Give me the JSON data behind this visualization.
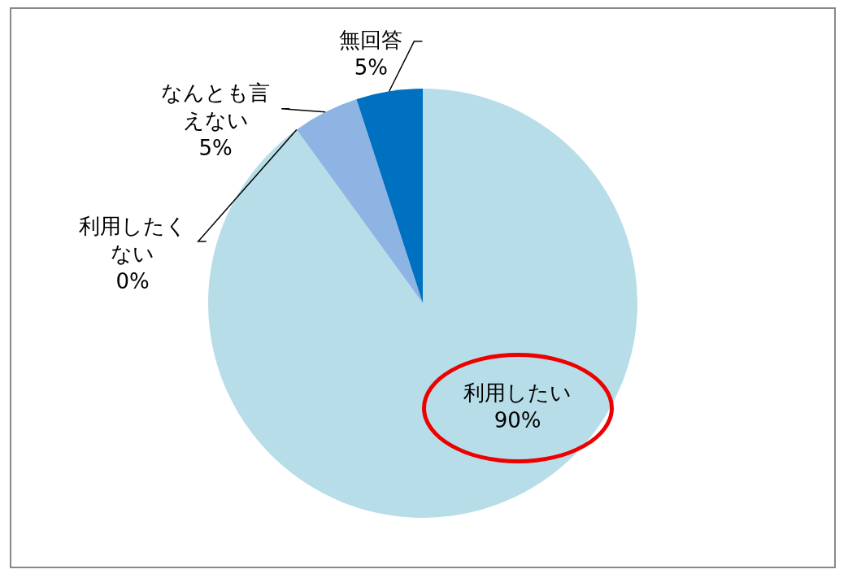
{
  "chart_data": {
    "type": "pie",
    "categories": [
      "利用したい",
      "利用したくない",
      "なんとも言えない",
      "無回答"
    ],
    "values": [
      90,
      0,
      5,
      5
    ],
    "colors": [
      "#b7dde8",
      "#4f81bd",
      "#8eb4e3",
      "#0070c0"
    ],
    "value_labels": [
      "90%",
      "0%",
      "5%",
      "5%"
    ],
    "legend": false
  }
}
